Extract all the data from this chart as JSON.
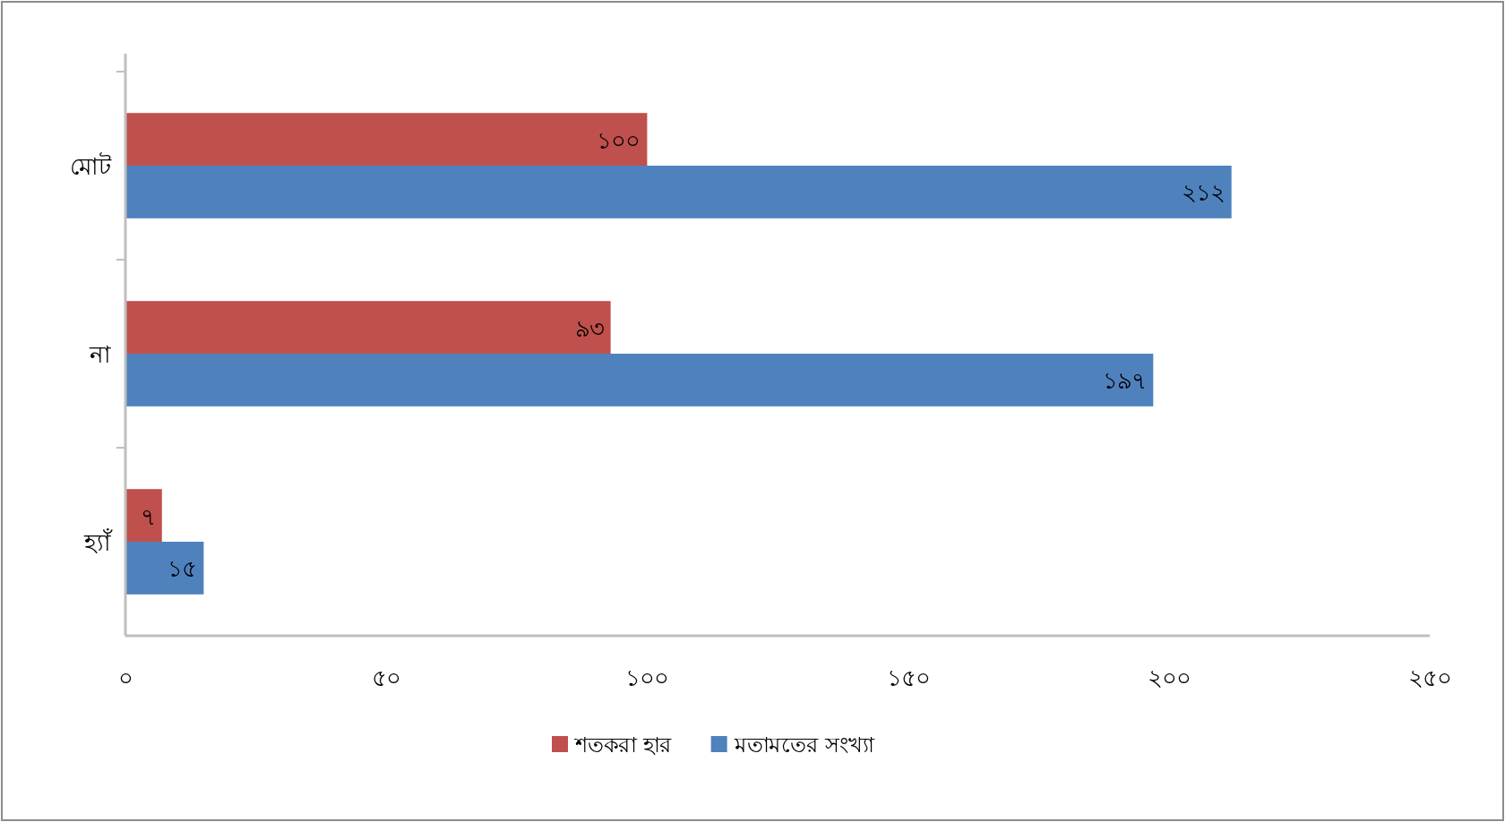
{
  "chart_data": {
    "type": "bar",
    "orientation": "horizontal",
    "categories": [
      "মোট",
      "না",
      "হ্যাঁ"
    ],
    "series": [
      {
        "name": "শতকরা হার",
        "color": "#c0504d",
        "values": [
          100,
          93,
          7
        ],
        "value_labels": [
          "১০০",
          "৯৩",
          "৭"
        ]
      },
      {
        "name": "মতামতের সংখ্যা",
        "color": "#4f81bd",
        "values": [
          212,
          197,
          15
        ],
        "value_labels": [
          "২১২",
          "১৯৭",
          "১৫"
        ]
      }
    ],
    "xlim": [
      0,
      250
    ],
    "xticks": [
      {
        "value": 0,
        "label": "০"
      },
      {
        "value": 50,
        "label": "৫০"
      },
      {
        "value": 100,
        "label": "১০০"
      },
      {
        "value": 150,
        "label": "১৫০"
      },
      {
        "value": 200,
        "label": "২০০"
      },
      {
        "value": 250,
        "label": "২৫০"
      }
    ],
    "grid": false,
    "legend": "bottom"
  }
}
